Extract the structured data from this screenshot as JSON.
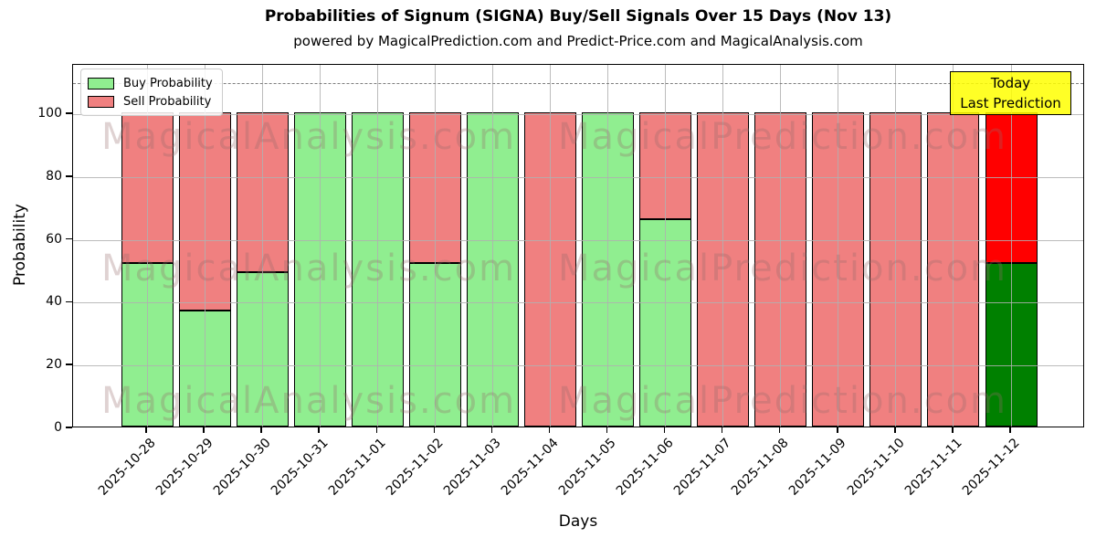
{
  "figure": {
    "title": "Probabilities of Signum (SIGNA) Buy/Sell Signals Over 15 Days (Nov 13)",
    "subtitle": "powered by MagicalPrediction.com and Predict-Price.com and MagicalAnalysis.com"
  },
  "chart_data": {
    "type": "bar",
    "stacked": true,
    "title": "Probabilities of Signum (SIGNA) Buy/Sell Signals Over 15 Days (Nov 13)",
    "subtitle": "powered by MagicalPrediction.com and Predict-Price.com and MagicalAnalysis.com",
    "xlabel": "Days",
    "ylabel": "Probability",
    "categories": [
      "2025-10-28",
      "2025-10-29",
      "2025-10-30",
      "2025-10-31",
      "2025-11-01",
      "2025-11-02",
      "2025-11-03",
      "2025-11-04",
      "2025-11-05",
      "2025-11-06",
      "2025-11-07",
      "2025-11-08",
      "2025-11-09",
      "2025-11-10",
      "2025-11-11",
      "2025-11-12"
    ],
    "series": [
      {
        "name": "Buy Probability",
        "color": "#90ee90",
        "today_color": "#008000",
        "values": [
          52,
          37,
          49,
          100,
          100,
          52,
          100,
          0,
          100,
          66,
          0,
          0,
          0,
          0,
          0,
          52
        ]
      },
      {
        "name": "Sell Probability",
        "color": "#f08080",
        "today_color": "#ff0000",
        "values": [
          48,
          63,
          51,
          0,
          0,
          48,
          0,
          100,
          0,
          34,
          100,
          100,
          100,
          100,
          100,
          48
        ]
      }
    ],
    "today_index": 15,
    "ylim": [
      0,
      116
    ],
    "yticks": [
      0,
      20,
      40,
      60,
      80,
      100
    ],
    "grid": true,
    "dashed_line_y": 110,
    "bar_edge_color": "#000000",
    "legend_position": "upper left",
    "annotation_colors": {
      "background": "#ffff00",
      "border": "#000000"
    },
    "grid_color": "#b0b0b0",
    "dashed_line_color": "#7f7f7f"
  },
  "annotation": {
    "line1": "Today",
    "line2": "Last Prediction"
  },
  "watermarks": {
    "left_text": "MagicalAnalysis.com",
    "right_text": "MagicalPrediction.com"
  }
}
